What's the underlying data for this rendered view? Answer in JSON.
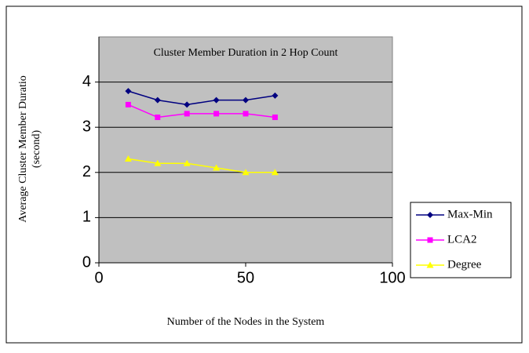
{
  "chart_data": {
    "type": "line",
    "title": "Cluster Member Duration in 2 Hop Count",
    "xlabel": "Number of the Nodes in the System",
    "ylabel": [
      "Average Cluster Member Duratio",
      "(second)"
    ],
    "x": [
      10,
      20,
      30,
      40,
      50,
      60
    ],
    "series": [
      {
        "name": "Max-Min",
        "color": "#000080",
        "marker": "diamond",
        "values": [
          3.8,
          3.6,
          3.5,
          3.6,
          3.6,
          3.7
        ]
      },
      {
        "name": "LCA2",
        "color": "#ff00ff",
        "marker": "square",
        "values": [
          3.5,
          3.22,
          3.3,
          3.3,
          3.3,
          3.22
        ]
      },
      {
        "name": "Degree",
        "color": "#ffff00",
        "marker": "triangle",
        "values": [
          2.3,
          2.2,
          2.2,
          2.1,
          2.0,
          2.0
        ]
      }
    ],
    "xlim": [
      0,
      100
    ],
    "xticks": [
      0,
      50,
      100
    ],
    "ylim": [
      0,
      5
    ],
    "yticks": [
      0,
      1,
      2,
      3,
      4
    ],
    "grid": true,
    "legend": "right"
  }
}
